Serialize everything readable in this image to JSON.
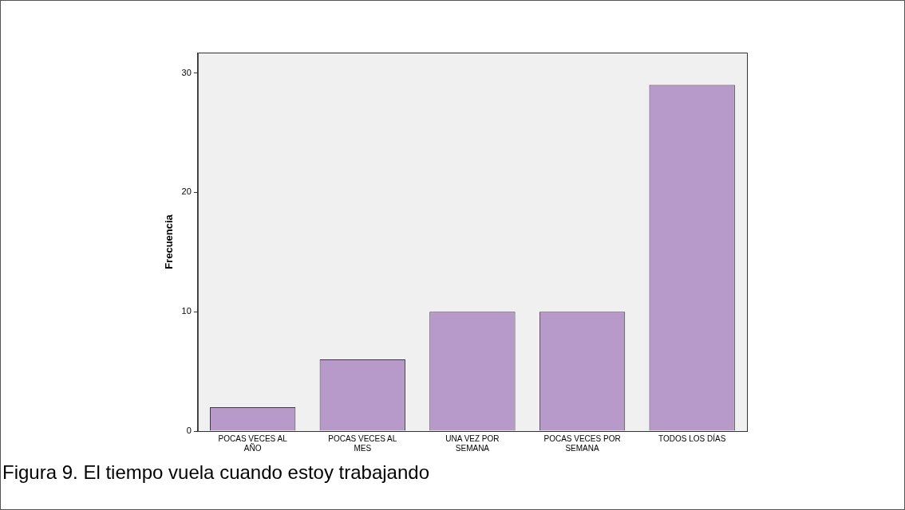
{
  "chart_data": {
    "type": "bar",
    "ylabel": "Frecuencia",
    "categories": [
      "POCAS VECES AL AÑO",
      "POCAS VECES AL MES",
      "UNA VEZ POR SEMANA",
      "POCAS VECES POR SEMANA",
      "TODOS LOS DÍAS"
    ],
    "values": [
      2,
      6,
      10,
      10,
      29
    ],
    "color": "#b89aca",
    "ylim": [
      0,
      31.7
    ],
    "yticks": [
      0,
      10,
      20,
      30
    ],
    "grid": false,
    "legend": false,
    "annotations": [
      "Figura 9. El tiempo vuela cuando estoy trabajando"
    ]
  }
}
